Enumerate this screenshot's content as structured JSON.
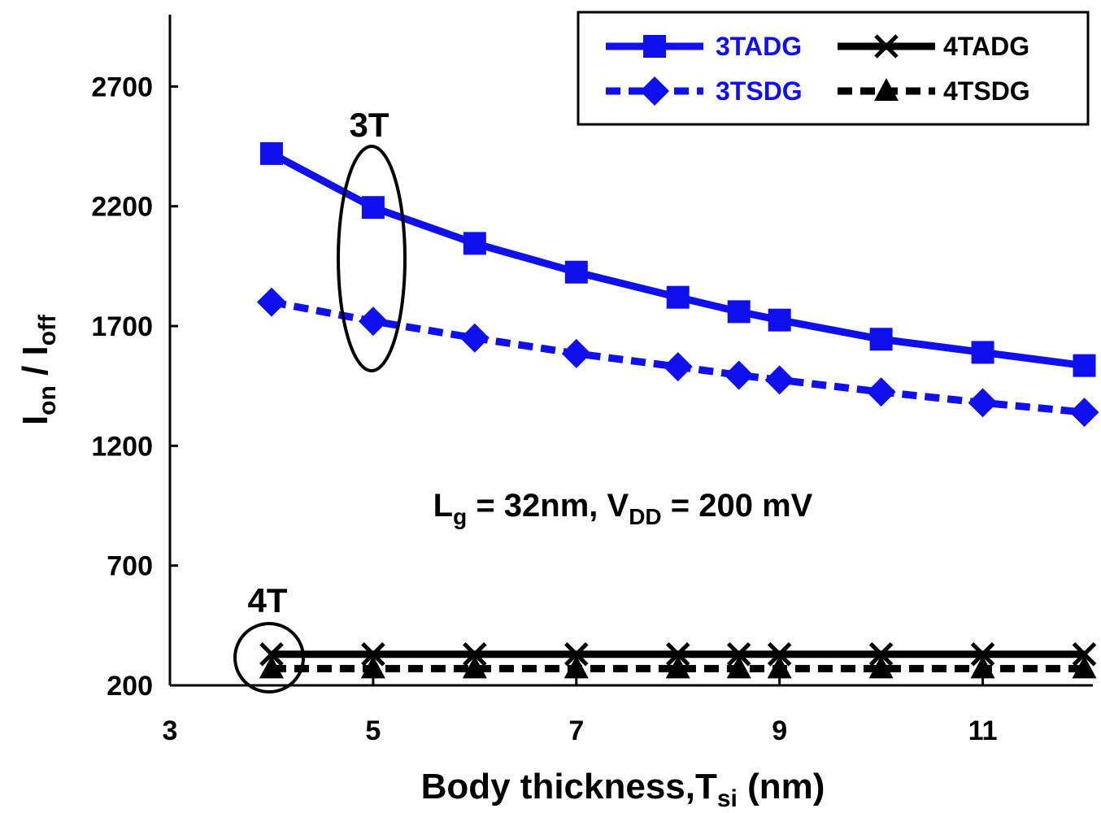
{
  "chart_data": {
    "type": "line",
    "title": "",
    "xlabel_main": "Body thickness,T",
    "xlabel_sub": "si",
    "xlabel_tail": " (nm)",
    "ylabel_parts": [
      "I",
      "on",
      " / I",
      "off"
    ],
    "xlim": [
      3,
      12
    ],
    "ylim": [
      200,
      3000
    ],
    "xticks": [
      3,
      5,
      7,
      9,
      11
    ],
    "yticks": [
      200,
      700,
      1200,
      1700,
      2200,
      2700
    ],
    "x": [
      4,
      5,
      6,
      7,
      8,
      8.6,
      9,
      10,
      11,
      12
    ],
    "series": [
      {
        "name": "3TADG",
        "color": "#1010ee",
        "dash": "solid",
        "marker": "square",
        "values": [
          2420,
          2195,
          2045,
          1925,
          1820,
          1760,
          1725,
          1645,
          1590,
          1535
        ]
      },
      {
        "name": "3TSDG",
        "color": "#1010ee",
        "dash": "dashed",
        "marker": "diamond",
        "values": [
          1800,
          1720,
          1650,
          1585,
          1530,
          1495,
          1475,
          1425,
          1380,
          1340
        ]
      },
      {
        "name": "4TADG",
        "color": "#000000",
        "dash": "solid",
        "marker": "x",
        "values": [
          330,
          330,
          330,
          330,
          330,
          330,
          330,
          330,
          330,
          330
        ]
      },
      {
        "name": "4TSDG",
        "color": "#000000",
        "dash": "dashed",
        "marker": "triangle",
        "values": [
          270,
          270,
          270,
          270,
          270,
          270,
          270,
          270,
          270,
          270
        ]
      }
    ],
    "annotations": {
      "group_3t": "3T",
      "group_4t": "4T",
      "cond_l": "L",
      "cond_l_sub": "g",
      "cond_mid": " = 32nm, V",
      "cond_v_sub": "DD",
      "cond_tail": " = 200 mV"
    },
    "legend": {
      "position": "top-right",
      "entries": [
        "3TADG",
        "4TADG",
        "3TSDG",
        "4TSDG"
      ]
    }
  }
}
